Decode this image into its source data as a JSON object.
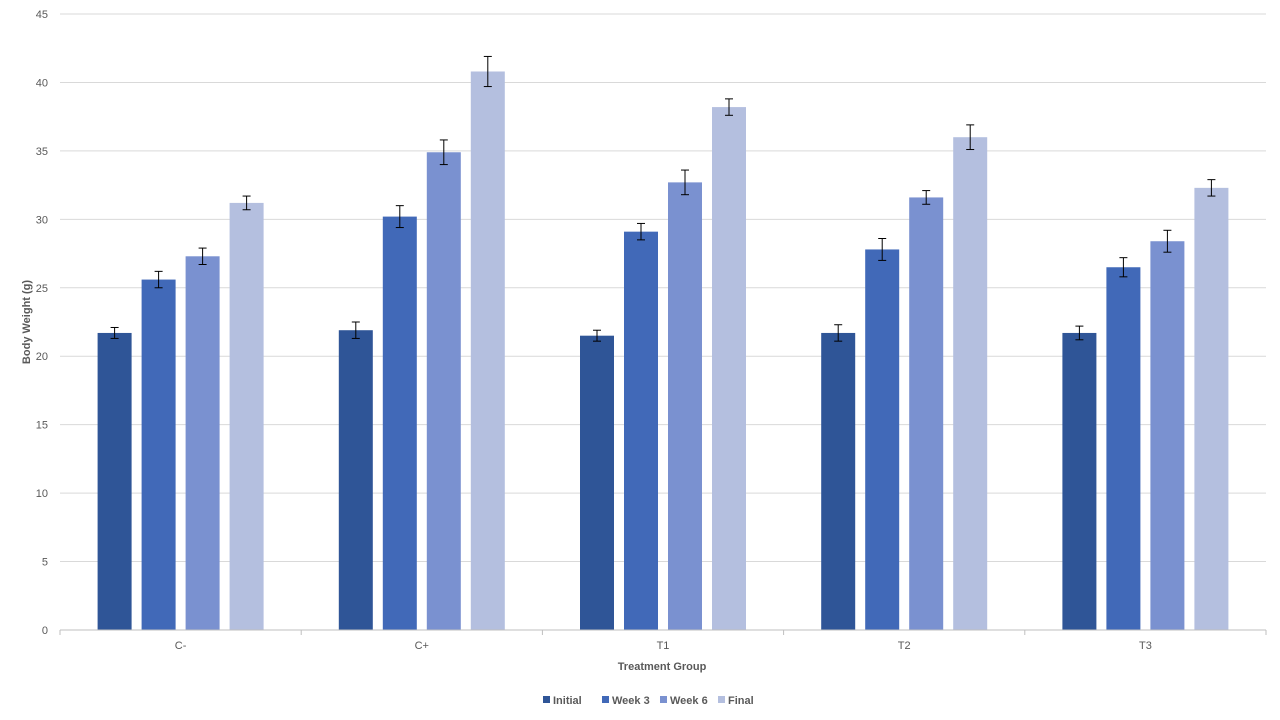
{
  "chart_data": {
    "type": "bar",
    "title": "",
    "xlabel": "Treatment Group",
    "ylabel": "Body Weight (g)",
    "ylim": [
      0,
      45
    ],
    "yticks": [
      0,
      5,
      10,
      15,
      20,
      25,
      30,
      35,
      40,
      45
    ],
    "grid": true,
    "legend_position": "bottom",
    "categories": [
      "C-",
      "C+",
      "T1",
      "T2",
      "T3"
    ],
    "series": [
      {
        "name": "Initial",
        "color": "#2f5597",
        "values": [
          21.7,
          21.9,
          21.5,
          21.7,
          21.7
        ],
        "errors": [
          0.4,
          0.6,
          0.4,
          0.6,
          0.5
        ]
      },
      {
        "name": "Week 3",
        "color": "#4169b8",
        "values": [
          25.6,
          30.2,
          29.1,
          27.8,
          26.5
        ],
        "errors": [
          0.6,
          0.8,
          0.6,
          0.8,
          0.7
        ]
      },
      {
        "name": "Week 6",
        "color": "#7a91d0",
        "values": [
          27.3,
          34.9,
          32.7,
          31.6,
          28.4
        ],
        "errors": [
          0.6,
          0.9,
          0.9,
          0.5,
          0.8
        ]
      },
      {
        "name": "Final",
        "color": "#b4bfdf",
        "values": [
          31.2,
          40.8,
          38.2,
          36.0,
          32.3
        ],
        "errors": [
          0.5,
          1.1,
          0.6,
          0.9,
          0.6
        ]
      }
    ]
  }
}
